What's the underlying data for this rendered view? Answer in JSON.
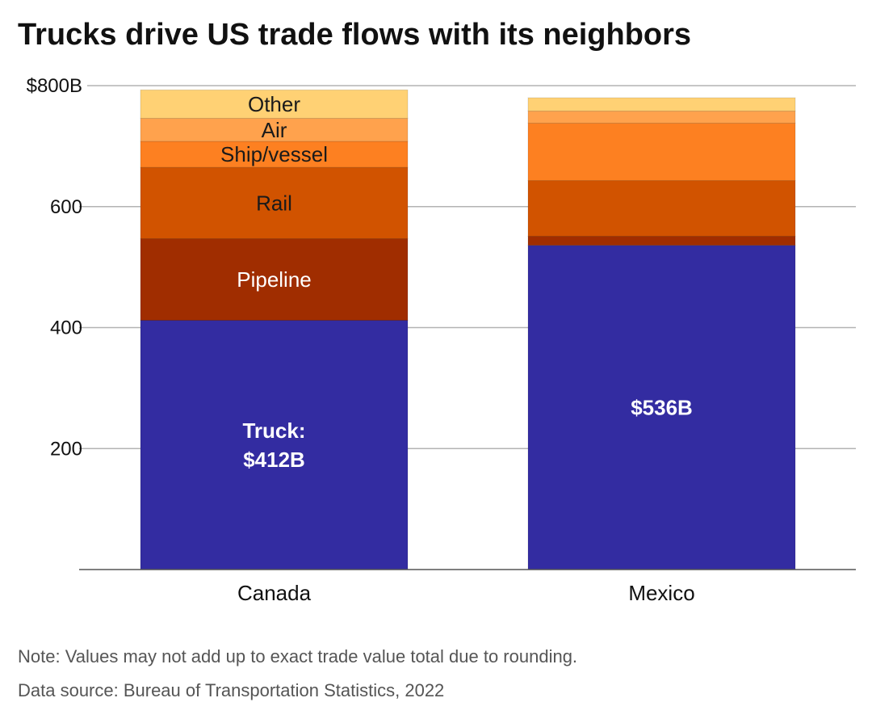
{
  "title": "Trucks drive US trade flows with its neighbors",
  "note": "Note: Values may not add up to exact trade value total due to rounding.",
  "source": "Data source: Bureau of Transportation Statistics, 2022",
  "colors": {
    "Truck": "#332ca1",
    "Pipeline": "#a02d00",
    "Rail": "#d15300",
    "Ship/vessel": "#fd8021",
    "Air": "#ffa24d",
    "Other": "#ffd174"
  },
  "chart_data": {
    "type": "bar",
    "stacked": true,
    "categories": [
      "Canada",
      "Mexico"
    ],
    "series": [
      {
        "name": "Truck",
        "values": [
          412,
          536
        ]
      },
      {
        "name": "Pipeline",
        "values": [
          135,
          15
        ]
      },
      {
        "name": "Rail",
        "values": [
          118,
          92
        ]
      },
      {
        "name": "Ship/vessel",
        "values": [
          43,
          95
        ]
      },
      {
        "name": "Air",
        "values": [
          38,
          20
        ]
      },
      {
        "name": "Other",
        "values": [
          47,
          22
        ]
      }
    ],
    "ylim": [
      0,
      800
    ],
    "yticks": [
      200,
      400,
      600,
      800
    ],
    "ytick_labels": [
      "200",
      "400",
      "600",
      "$800B"
    ],
    "grid": true,
    "segment_labels": {
      "Canada": [
        {
          "series": "Truck",
          "lines": [
            "Truck:",
            "$412B"
          ],
          "bold": true
        },
        {
          "series": "Pipeline",
          "lines": [
            "Pipeline"
          ]
        },
        {
          "series": "Rail",
          "lines": [
            "Rail"
          ]
        },
        {
          "series": "Ship/vessel",
          "lines": [
            "Ship/vessel"
          ]
        },
        {
          "series": "Air",
          "lines": [
            "Air"
          ]
        },
        {
          "series": "Other",
          "lines": [
            "Other"
          ]
        }
      ],
      "Mexico": [
        {
          "series": "Truck",
          "lines": [
            "$536B"
          ],
          "bold": true
        }
      ]
    }
  }
}
